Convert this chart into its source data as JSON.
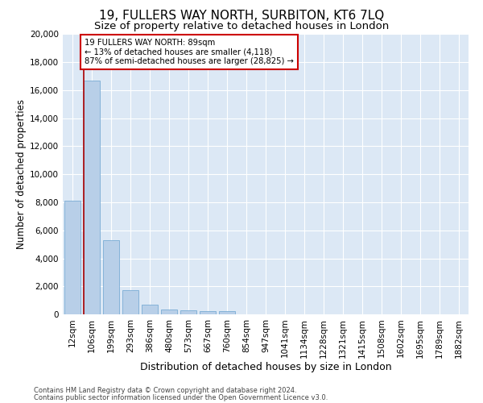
{
  "title": "19, FULLERS WAY NORTH, SURBITON, KT6 7LQ",
  "subtitle": "Size of property relative to detached houses in London",
  "xlabel": "Distribution of detached houses by size in London",
  "ylabel": "Number of detached properties",
  "categories": [
    "12sqm",
    "106sqm",
    "199sqm",
    "293sqm",
    "386sqm",
    "480sqm",
    "573sqm",
    "667sqm",
    "760sqm",
    "854sqm",
    "947sqm",
    "1041sqm",
    "1134sqm",
    "1228sqm",
    "1321sqm",
    "1415sqm",
    "1508sqm",
    "1602sqm",
    "1695sqm",
    "1789sqm",
    "1882sqm"
  ],
  "values": [
    8100,
    16700,
    5300,
    1750,
    680,
    370,
    290,
    220,
    210,
    0,
    0,
    0,
    0,
    0,
    0,
    0,
    0,
    0,
    0,
    0,
    0
  ],
  "bar_color": "#b8cfe8",
  "bar_edge_color": "#7aacd4",
  "vline_color": "#aa0000",
  "annotation_text": "19 FULLERS WAY NORTH: 89sqm\n← 13% of detached houses are smaller (4,118)\n87% of semi-detached houses are larger (28,825) →",
  "annotation_box_color": "#ffffff",
  "annotation_box_edgecolor": "#cc0000",
  "ylim": [
    0,
    20000
  ],
  "yticks": [
    0,
    2000,
    4000,
    6000,
    8000,
    10000,
    12000,
    14000,
    16000,
    18000,
    20000
  ],
  "bg_color": "#dce8f5",
  "grid_color": "#ffffff",
  "footnote1": "Contains HM Land Registry data © Crown copyright and database right 2024.",
  "footnote2": "Contains public sector information licensed under the Open Government Licence v3.0.",
  "title_fontsize": 11,
  "subtitle_fontsize": 9.5,
  "axis_label_fontsize": 8.5,
  "tick_fontsize": 7.5
}
